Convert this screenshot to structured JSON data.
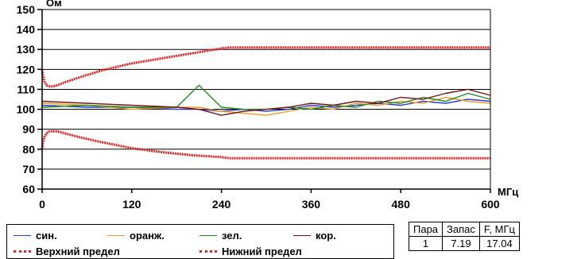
{
  "chart_data": {
    "type": "line",
    "ylabel": "Ом",
    "xlabel": "МГц",
    "xlim": [
      0,
      600
    ],
    "ylim": [
      60,
      150
    ],
    "x_ticks": [
      "0",
      "120",
      "240",
      "360",
      "480",
      "600"
    ],
    "y_ticks": [
      "60",
      "70",
      "80",
      "90",
      "100",
      "110",
      "120",
      "130",
      "140",
      "150"
    ],
    "grid": "horizontal",
    "series": [
      {
        "name": "син.",
        "color": "#1f3fd8",
        "style": "solid",
        "x": [
          0,
          60,
          120,
          180,
          210,
          240,
          270,
          300,
          330,
          360,
          390,
          420,
          450,
          480,
          510,
          540,
          570,
          600
        ],
        "y": [
          102,
          101,
          101,
          100,
          100,
          99,
          100,
          99,
          100,
          102,
          101,
          102,
          103,
          102,
          104,
          103,
          105,
          104
        ]
      },
      {
        "name": "оранж.",
        "color": "#f39a1f",
        "style": "solid",
        "x": [
          0,
          60,
          120,
          180,
          210,
          240,
          270,
          300,
          330,
          360,
          390,
          420,
          450,
          480,
          510,
          540,
          570,
          600
        ],
        "y": [
          103,
          102,
          100,
          101,
          101,
          99,
          98,
          97,
          99,
          101,
          100,
          103,
          102,
          104,
          103,
          106,
          104,
          103
        ]
      },
      {
        "name": "зел.",
        "color": "#1d8c1d",
        "style": "solid",
        "x": [
          0,
          60,
          120,
          180,
          210,
          240,
          270,
          300,
          330,
          360,
          390,
          420,
          450,
          480,
          510,
          540,
          570,
          600
        ],
        "y": [
          101,
          102,
          101,
          101,
          112,
          101,
          100,
          100,
          101,
          100,
          102,
          101,
          104,
          103,
          106,
          104,
          108,
          105
        ]
      },
      {
        "name": "кор.",
        "color": "#7a1010",
        "style": "solid",
        "x": [
          0,
          60,
          120,
          180,
          210,
          240,
          270,
          300,
          330,
          360,
          390,
          420,
          450,
          480,
          510,
          540,
          570,
          600
        ],
        "y": [
          104,
          103,
          102,
          101,
          100,
          97,
          99,
          100,
          101,
          103,
          102,
          104,
          103,
          106,
          105,
          108,
          110,
          107
        ]
      },
      {
        "name": "Верхний предел",
        "color": "#ee2020",
        "style": "dotted",
        "x": [
          0,
          1,
          3,
          6,
          10,
          15,
          20,
          30,
          50,
          80,
          120,
          160,
          200,
          240,
          250,
          300,
          360,
          420,
          480,
          540,
          600
        ],
        "y": [
          120,
          117,
          114,
          112,
          111.5,
          111.5,
          112,
          113.5,
          116,
          119.5,
          123,
          125.5,
          128,
          130.5,
          131,
          131,
          131,
          131,
          131,
          131,
          131
        ]
      },
      {
        "name": "Нижний предел",
        "color": "#ee2020",
        "style": "dotted",
        "x": [
          0,
          1,
          3,
          6,
          10,
          15,
          20,
          30,
          50,
          80,
          120,
          160,
          200,
          240,
          250,
          300,
          360,
          420,
          480,
          540,
          600
        ],
        "y": [
          80,
          83,
          86,
          88,
          89,
          89,
          89,
          88,
          86,
          83.5,
          80.5,
          78.5,
          77,
          76,
          75.5,
          75.5,
          75.5,
          75.5,
          75.5,
          75.5,
          75.5
        ]
      }
    ]
  },
  "table": {
    "headers": [
      "Пара",
      "Запас",
      "F, МГц"
    ],
    "rows": [
      [
        "1",
        "7.19",
        "17.04"
      ]
    ]
  }
}
